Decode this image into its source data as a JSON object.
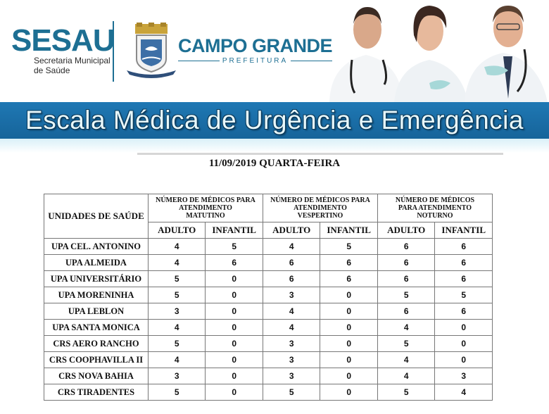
{
  "header": {
    "sesau_logo": "SESAU",
    "sesau_subtitle_line1": "Secretaria Municipal",
    "sesau_subtitle_line2": "de Saúde",
    "city_logo": "CAMPO GRANDE",
    "city_subtitle": "PREFEITURA",
    "crest_icon": "city-coat-of-arms-icon",
    "photo": "three-doctors-photo"
  },
  "banner": {
    "title": "Escala Médica de Urgência e Emergência",
    "color": "#1a6fa8"
  },
  "date_line": "11/09/2019 QUARTA-FEIRA",
  "table": {
    "units_header": "UNIDADES DE SAÚDE",
    "groups": [
      {
        "line1": "NÚMERO DE MÉDICOS PARA",
        "line2": "ATENDIMENTO",
        "line3": "MATUTINO"
      },
      {
        "line1": "NÚMERO DE MÉDICOS PARA",
        "line2": "ATENDIMENTO",
        "line3": "VESPERTINO"
      },
      {
        "line1": "NÚMERO DE MÉDICOS",
        "line2": "PARA ATENDIMENTO",
        "line3": "NOTURNO"
      }
    ],
    "sub_headers": [
      "ADULTO",
      "INFANTIL",
      "ADULTO",
      "INFANTIL",
      "ADULTO",
      "INFANTIL"
    ],
    "rows": [
      {
        "unit": "UPA CEL. ANTONINO",
        "values": [
          "4",
          "5",
          "4",
          "5",
          "6",
          "6"
        ]
      },
      {
        "unit": "UPA ALMEIDA",
        "values": [
          "4",
          "6",
          "6",
          "6",
          "6",
          "6"
        ]
      },
      {
        "unit": "UPA UNIVERSITÁRIO",
        "values": [
          "5",
          "0",
          "6",
          "6",
          "6",
          "6"
        ]
      },
      {
        "unit": "UPA MORENINHA",
        "values": [
          "5",
          "0",
          "3",
          "0",
          "5",
          "5"
        ]
      },
      {
        "unit": "UPA LEBLON",
        "values": [
          "3",
          "0",
          "4",
          "0",
          "6",
          "6"
        ]
      },
      {
        "unit": "UPA SANTA MONICA",
        "values": [
          "4",
          "0",
          "4",
          "0",
          "4",
          "0"
        ]
      },
      {
        "unit": "CRS AERO RANCHO",
        "values": [
          "5",
          "0",
          "3",
          "0",
          "5",
          "0"
        ]
      },
      {
        "unit": "CRS COOPHAVILLA II",
        "values": [
          "4",
          "0",
          "3",
          "0",
          "4",
          "0"
        ]
      },
      {
        "unit": "CRS NOVA BAHIA",
        "values": [
          "3",
          "0",
          "3",
          "0",
          "4",
          "3"
        ]
      },
      {
        "unit": "CRS TIRADENTES",
        "values": [
          "5",
          "0",
          "5",
          "0",
          "5",
          "4"
        ]
      }
    ]
  }
}
